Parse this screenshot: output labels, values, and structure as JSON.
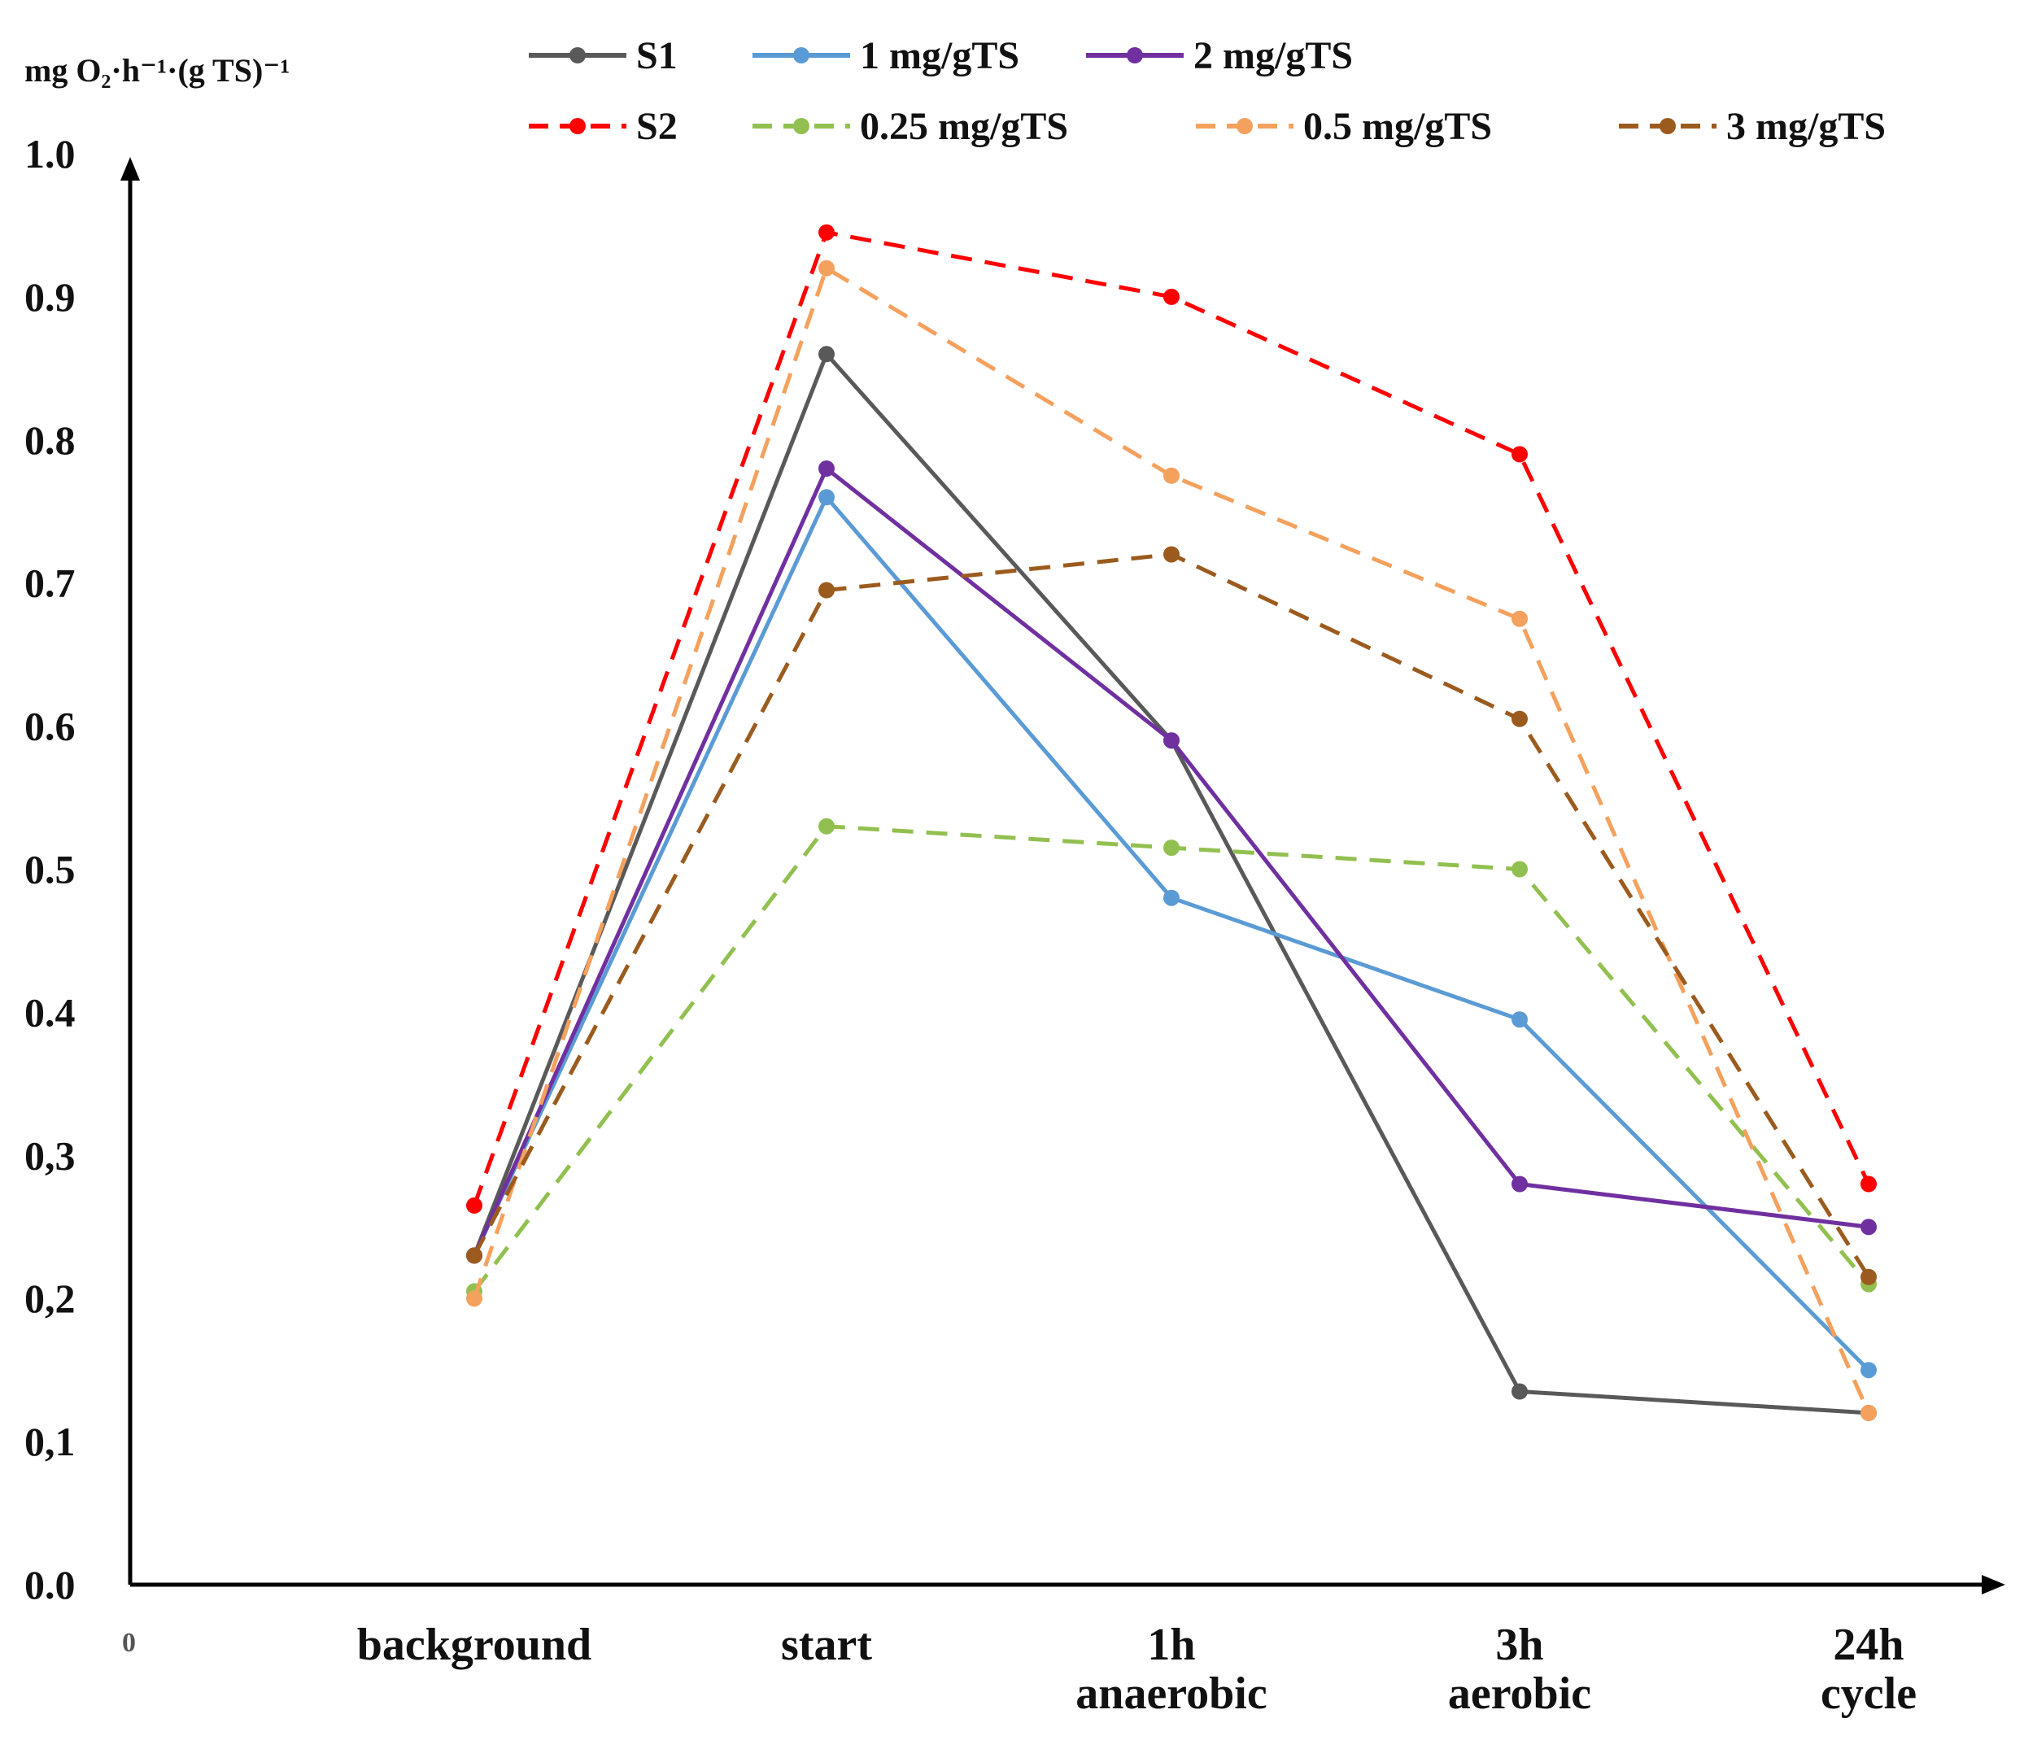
{
  "chart_data": {
    "type": "line",
    "title": "",
    "ylabel": "mg O₂·h⁻¹·(g TS)⁻¹",
    "xlabel": "",
    "origin_label": "0",
    "ylim": [
      0,
      1.0
    ],
    "y_ticks": [
      {
        "value": 0.0,
        "label": "0.0"
      },
      {
        "value": 0.1,
        "label": "0,1"
      },
      {
        "value": 0.2,
        "label": "0,2"
      },
      {
        "value": 0.3,
        "label": "0,3"
      },
      {
        "value": 0.4,
        "label": "0.4"
      },
      {
        "value": 0.5,
        "label": "0.5"
      },
      {
        "value": 0.6,
        "label": "0.6"
      },
      {
        "value": 0.7,
        "label": "0.7"
      },
      {
        "value": 0.8,
        "label": "0.8"
      },
      {
        "value": 0.9,
        "label": "0.9"
      },
      {
        "value": 1.0,
        "label": "1.0"
      }
    ],
    "categories": [
      [
        "background"
      ],
      [
        "start"
      ],
      [
        "1h",
        "anaerobic"
      ],
      [
        "3h",
        "aerobic"
      ],
      [
        "24h",
        "cycle"
      ]
    ],
    "legend_position": "top",
    "series": [
      {
        "name": "S1",
        "color": "#595959",
        "dashed": false,
        "values": [
          0.23,
          0.86,
          0.59,
          0.135,
          0.12
        ]
      },
      {
        "name": "1 mg/gTS",
        "color": "#5b9bd5",
        "dashed": false,
        "values": [
          0.23,
          0.76,
          0.48,
          0.395,
          0.15
        ]
      },
      {
        "name": "2 mg/gTS",
        "color": "#7030a0",
        "dashed": false,
        "values": [
          0.23,
          0.78,
          0.59,
          0.28,
          0.25
        ]
      },
      {
        "name": "S2",
        "color": "#ff0000",
        "dashed": true,
        "values": [
          0.265,
          0.945,
          0.9,
          0.79,
          0.28
        ]
      },
      {
        "name": "0.25 mg/gTS",
        "color": "#92c050",
        "dashed": true,
        "values": [
          0.205,
          0.53,
          0.515,
          0.5,
          0.21
        ]
      },
      {
        "name": "0.5 mg/gTS",
        "color": "#f4a15e",
        "dashed": true,
        "values": [
          0.2,
          0.92,
          0.775,
          0.675,
          0.12
        ]
      },
      {
        "name": "3 mg/gTS",
        "color": "#9c5b1e",
        "dashed": true,
        "values": [
          0.23,
          0.695,
          0.72,
          0.605,
          0.215
        ]
      }
    ]
  }
}
